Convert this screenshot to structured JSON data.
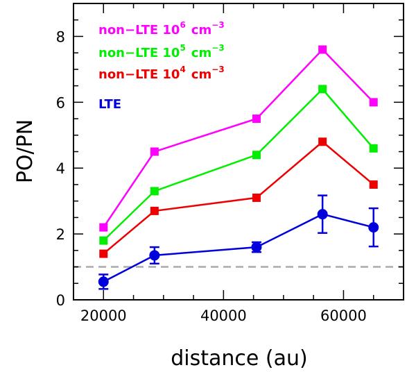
{
  "chart_data": {
    "type": "line",
    "xlabel": "distance (au)",
    "ylabel": "PO/PN",
    "xlim": [
      15000,
      70000
    ],
    "ylim": [
      0,
      9
    ],
    "x_ticks": [
      "20000",
      "40000",
      "60000"
    ],
    "y_ticks": [
      "0",
      "2",
      "4",
      "6",
      "8"
    ],
    "x": [
      20000,
      28500,
      45500,
      56500,
      65000
    ],
    "reference_line": {
      "y": 1,
      "style": "dashed",
      "color": "#aaaaaa"
    },
    "series": [
      {
        "legend_text": "non−LTE 10",
        "legend_sup": "6",
        "legend_unit": "cm",
        "legend_unit_sup": "−3",
        "color": "#ff00ff",
        "marker": "square",
        "values": [
          2.2,
          4.5,
          5.5,
          7.6,
          6.0
        ]
      },
      {
        "legend_text": "non−LTE 10",
        "legend_sup": "5",
        "legend_unit": "cm",
        "legend_unit_sup": "−3",
        "color": "#00ee00",
        "marker": "square",
        "values": [
          1.8,
          3.3,
          4.4,
          6.4,
          4.6
        ]
      },
      {
        "legend_text": "non−LTE 10",
        "legend_sup": "4",
        "legend_unit": "cm",
        "legend_unit_sup": "−3",
        "color": "#ee0000",
        "marker": "square",
        "values": [
          1.4,
          2.7,
          3.1,
          4.8,
          3.5
        ]
      },
      {
        "legend_text": "LTE",
        "legend_sup": "",
        "legend_unit": "",
        "legend_unit_sup": "",
        "color": "#0000dd",
        "marker": "circle",
        "values": [
          0.55,
          1.35,
          1.6,
          2.6,
          2.2
        ],
        "errors": [
          0.22,
          0.25,
          0.15,
          0.57,
          0.58
        ]
      }
    ],
    "legend_position": "top-left",
    "grid": false
  }
}
